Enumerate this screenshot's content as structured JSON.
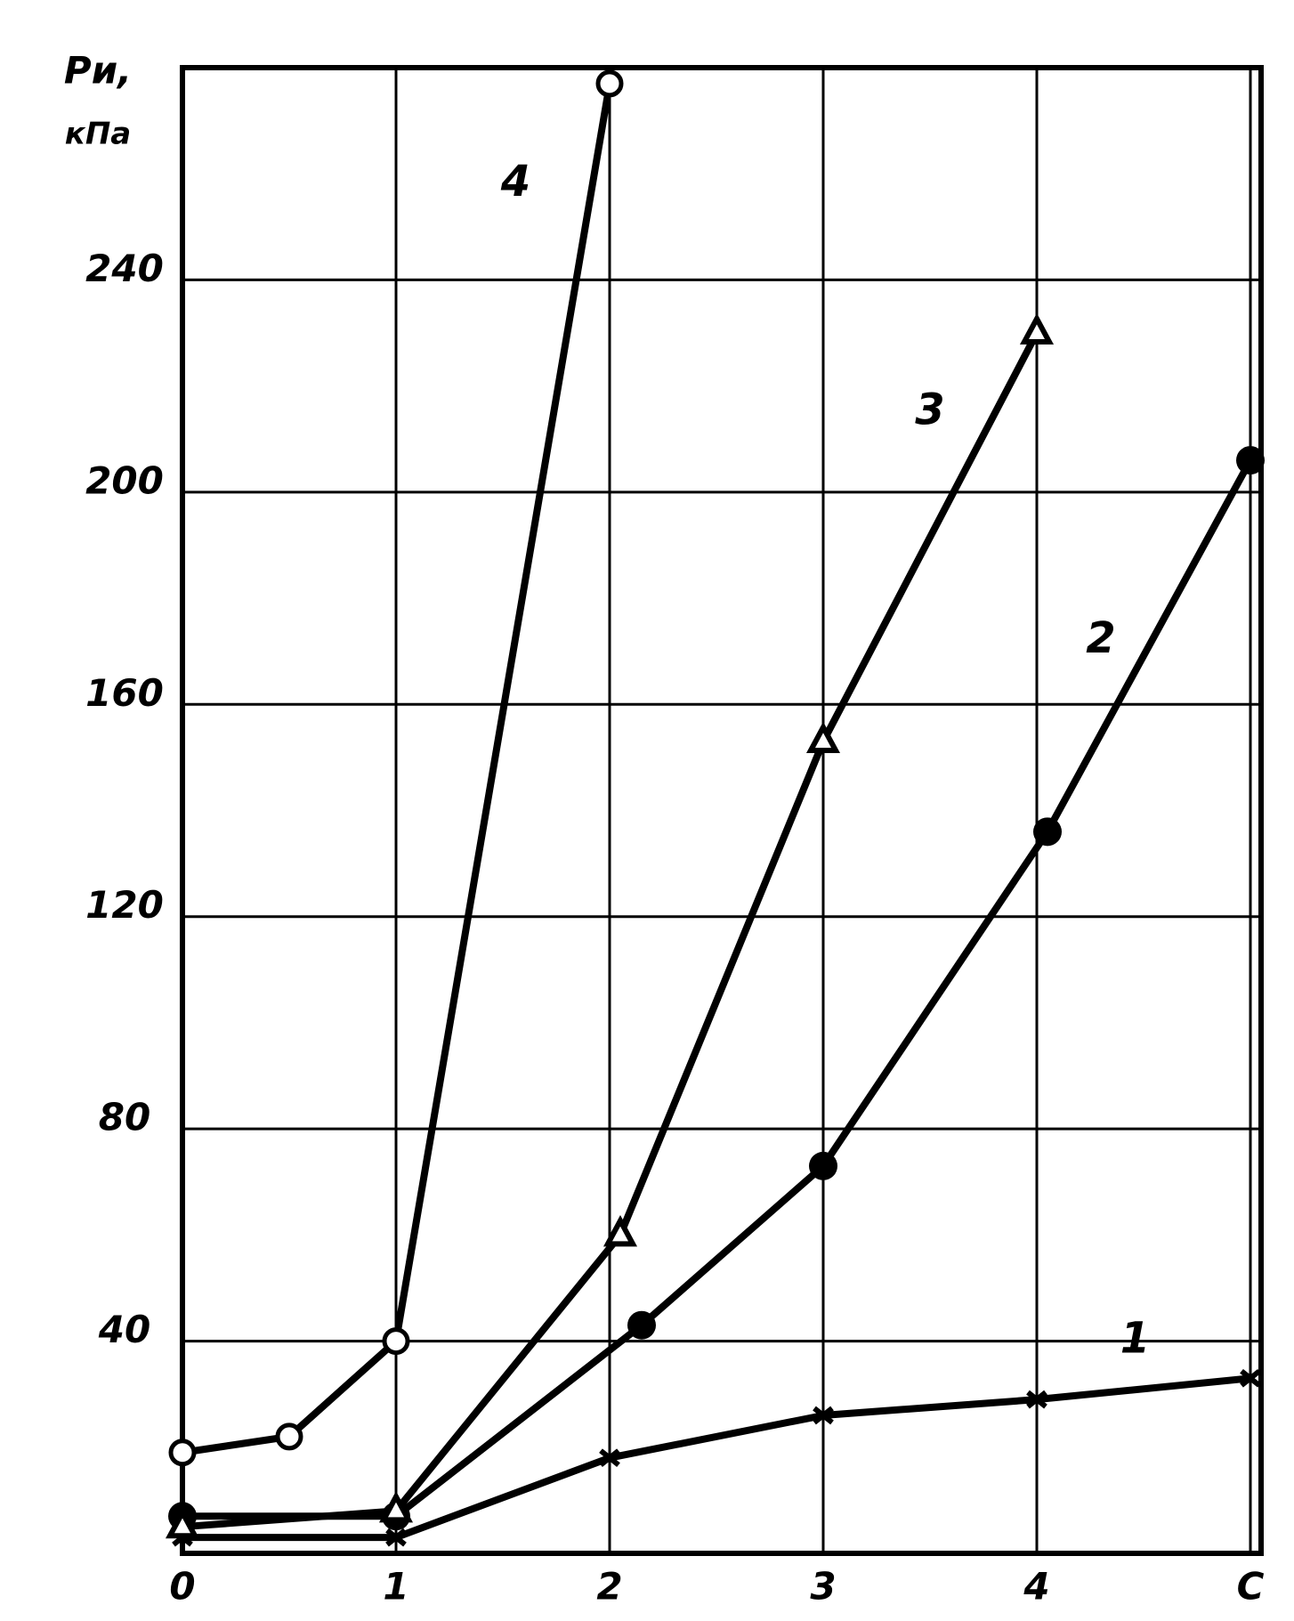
{
  "chart_data": {
    "type": "line",
    "y_label_line1": "Pи,",
    "y_label_line2": "кПа",
    "xlim": [
      0,
      5.05
    ],
    "ylim": [
      0,
      280
    ],
    "xticks": [
      0,
      1,
      2,
      3,
      4,
      {
        "value": 5,
        "label": "C"
      }
    ],
    "yticks": [
      40,
      80,
      120,
      160,
      200,
      240
    ],
    "grid": true,
    "series": [
      {
        "name": "1",
        "color": "#000000",
        "marker": "x",
        "x": [
          0,
          1,
          2,
          3,
          4,
          5
        ],
        "values": [
          3,
          3,
          18,
          26,
          29,
          33
        ]
      },
      {
        "name": "2",
        "color": "#000000",
        "marker": "dot",
        "x": [
          0,
          1,
          2.15,
          3,
          4.05,
          5
        ],
        "values": [
          7,
          7,
          43,
          73,
          136,
          206
        ]
      },
      {
        "name": "3",
        "color": "#000000",
        "marker": "triangle",
        "x": [
          0,
          1,
          2.05,
          3,
          4
        ],
        "values": [
          5,
          8,
          60,
          153,
          230
        ]
      },
      {
        "name": "4",
        "color": "#000000",
        "marker": "circle",
        "x": [
          0,
          0.5,
          1,
          2
        ],
        "values": [
          19,
          22,
          40,
          277
        ]
      }
    ]
  }
}
